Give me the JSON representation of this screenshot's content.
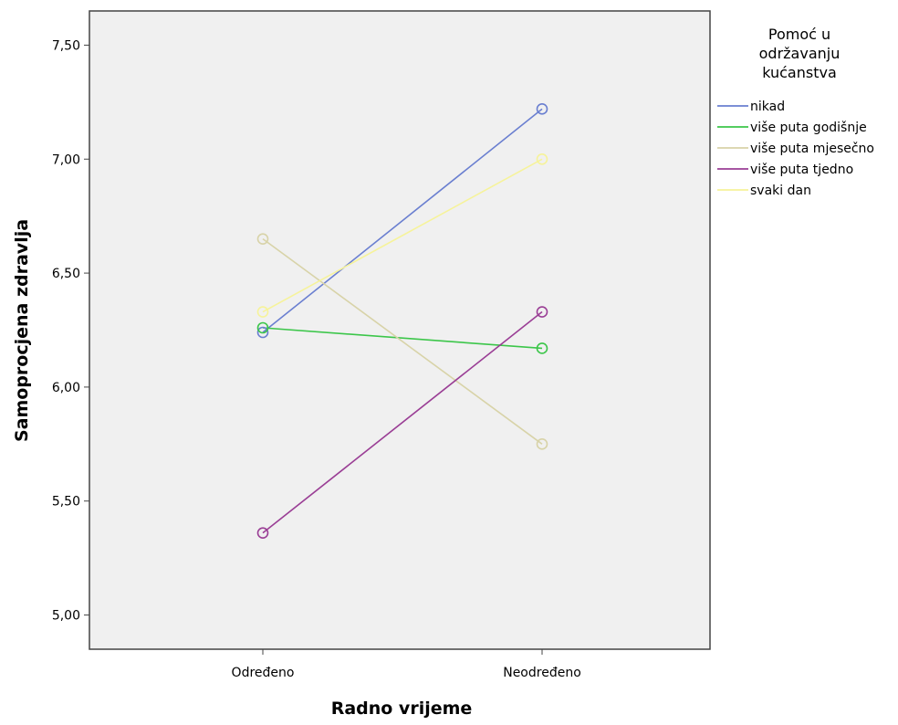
{
  "chart_data": {
    "type": "line",
    "title": "",
    "xlabel": "Radno vrijeme",
    "ylabel": "Samoprocjena zdravlja",
    "categories": [
      "Određeno",
      "Neodređeno"
    ],
    "ylim": [
      4.85,
      7.65
    ],
    "yticks": [
      5.0,
      5.5,
      6.0,
      6.5,
      7.0,
      7.5
    ],
    "ytick_labels": [
      "5,00",
      "5,50",
      "6,00",
      "6,50",
      "7,00",
      "7,50"
    ],
    "grid": false,
    "legend": {
      "title_lines": [
        "Pomoć u",
        "održavanju",
        "kućanstva"
      ],
      "placement": "right"
    },
    "series": [
      {
        "name": "nikad",
        "color": "#6a7fd0",
        "values": [
          6.24,
          7.22
        ]
      },
      {
        "name": "više puta godišnje",
        "color": "#3cc64a",
        "values": [
          6.26,
          6.17
        ]
      },
      {
        "name": "više puta mjesečno",
        "color": "#d8d3a8",
        "values": [
          6.65,
          5.75
        ]
      },
      {
        "name": "više puta tjedno",
        "color": "#9a3e95",
        "values": [
          5.36,
          6.33
        ]
      },
      {
        "name": "svaki dan",
        "color": "#f6f39a",
        "values": [
          6.33,
          7.0
        ]
      }
    ]
  }
}
